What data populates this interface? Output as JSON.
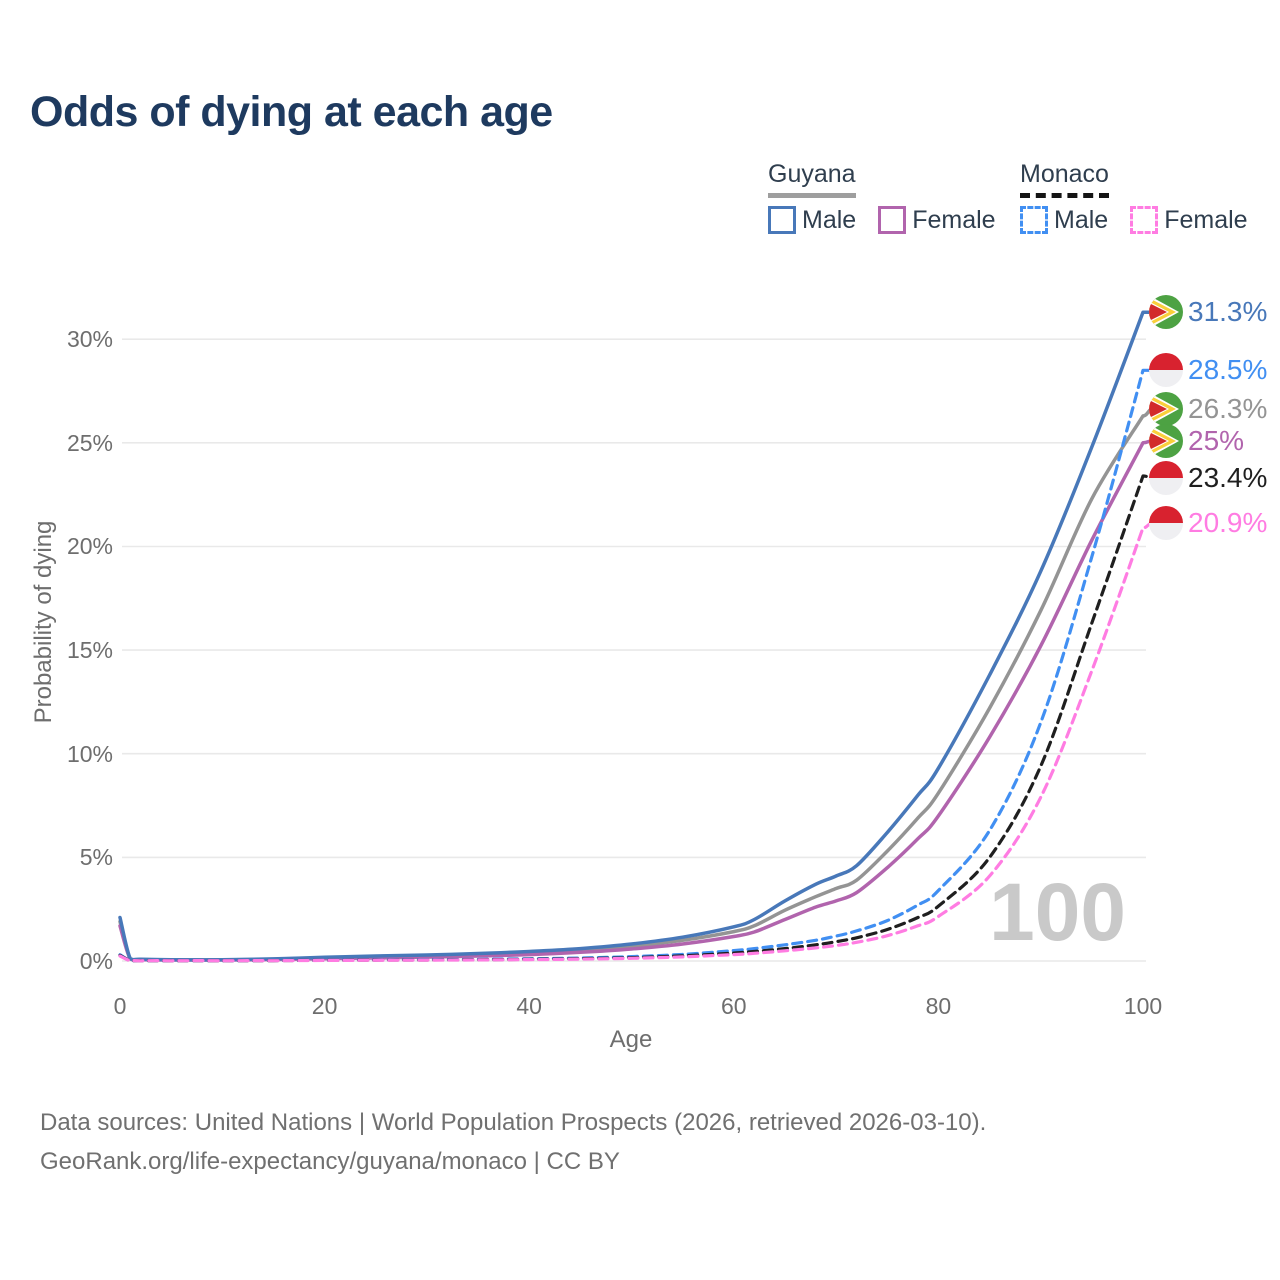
{
  "page": {
    "title": "Odds of dying at each age",
    "watermark": "100"
  },
  "legend": {
    "groups": [
      {
        "name": "Guyana",
        "line_style": "solid",
        "line_color": "#9e9e9e",
        "items": [
          {
            "label": "Male",
            "color": "#4878b9",
            "dashed": false
          },
          {
            "label": "Female",
            "color": "#b164ad",
            "dashed": false
          }
        ]
      },
      {
        "name": "Monaco",
        "line_style": "dashed",
        "line_color": "#141414",
        "items": [
          {
            "label": "Male",
            "color": "#418ff2",
            "dashed": true
          },
          {
            "label": "Female",
            "color": "#ff7ce2",
            "dashed": true
          }
        ]
      }
    ]
  },
  "axes": {
    "x": {
      "title": "Age",
      "ticks": [
        0,
        20,
        40,
        60,
        80,
        100
      ],
      "range": [
        0,
        100
      ]
    },
    "y": {
      "title": "Probability of dying",
      "tick_labels": [
        "0%",
        "5%",
        "10%",
        "15%",
        "20%",
        "25%",
        "30%"
      ],
      "tick_values": [
        0,
        5,
        10,
        15,
        20,
        25,
        30
      ],
      "range": [
        0,
        31.5
      ],
      "grid": true
    }
  },
  "footer": {
    "line1": "Data sources: United Nations | World Population Prospects (2026, retrieved 2026-03-10).",
    "line2": "GeoRank.org/life-expectancy/guyana/monaco | CC BY"
  },
  "colors": {
    "title": "#1e3a5f",
    "axis_text": "#6e6e6e",
    "grid": "#e9e9e9",
    "watermark": "#c9c9c9",
    "legend_text": "#2f3e4e",
    "guyana_flag_green": "#4da243",
    "guyana_flag_gold": "#f9cf3a",
    "guyana_flag_red": "#d22b2b",
    "monaco_flag_red": "#d8222f",
    "monaco_flag_white": "#efeff2"
  },
  "chart_data": {
    "type": "line",
    "title": "Odds of dying at each age",
    "xlabel": "Age",
    "ylabel": "Probability of dying",
    "x_ticks": [
      0,
      20,
      40,
      60,
      80,
      100
    ],
    "y_ticks_percent": [
      0,
      5,
      10,
      15,
      20,
      25,
      30
    ],
    "ylim_percent": [
      0,
      31.5
    ],
    "legend_position": "top-right",
    "grid": "horizontal-only",
    "ages": [
      0,
      1,
      2,
      5,
      10,
      15,
      20,
      25,
      30,
      35,
      40,
      45,
      50,
      55,
      60,
      62,
      65,
      68,
      70,
      72,
      75,
      78,
      80,
      85,
      90,
      95,
      100
    ],
    "series": [
      {
        "id": "guyana-both",
        "country": "Guyana",
        "sex": "Both",
        "color": "#949494",
        "dashed": false,
        "end_label": "26.3%",
        "end_value_percent": 26.3,
        "flag": "guyana",
        "label_dy": -7,
        "values_percent": [
          1.9,
          0.11,
          0.07,
          0.055,
          0.055,
          0.09,
          0.15,
          0.2,
          0.24,
          0.3,
          0.39,
          0.52,
          0.71,
          1.0,
          1.42,
          1.7,
          2.45,
          3.1,
          3.5,
          3.9,
          5.3,
          6.9,
          8.1,
          12.2,
          16.9,
          22.3,
          26.3
        ]
      },
      {
        "id": "guyana-female",
        "country": "Guyana",
        "sex": "Female",
        "color": "#b164ad",
        "dashed": false,
        "end_label": "25%",
        "end_value_percent": 25.0,
        "flag": "guyana",
        "label_dy": -2,
        "values_percent": [
          1.7,
          0.1,
          0.06,
          0.05,
          0.05,
          0.07,
          0.11,
          0.15,
          0.19,
          0.24,
          0.31,
          0.42,
          0.58,
          0.82,
          1.18,
          1.4,
          2.0,
          2.6,
          2.9,
          3.3,
          4.5,
          5.9,
          7.0,
          10.8,
          15.2,
          20.3,
          25.0
        ]
      },
      {
        "id": "guyana-male",
        "country": "Guyana",
        "sex": "Male",
        "color": "#4878b9",
        "dashed": false,
        "end_label": "31.3%",
        "end_value_percent": 31.3,
        "flag": "guyana",
        "label_dy": 0,
        "values_percent": [
          2.1,
          0.12,
          0.08,
          0.06,
          0.06,
          0.1,
          0.18,
          0.24,
          0.29,
          0.36,
          0.46,
          0.6,
          0.82,
          1.15,
          1.65,
          2.0,
          2.9,
          3.7,
          4.1,
          4.6,
          6.2,
          8.0,
          9.3,
          13.8,
          18.8,
          24.8,
          31.3
        ]
      },
      {
        "id": "monaco-male",
        "country": "Monaco",
        "sex": "Male",
        "color": "#418ff2",
        "dashed": true,
        "end_label": "28.5%",
        "end_value_percent": 28.5,
        "flag": "monaco",
        "label_dy": 0,
        "values_percent": [
          0.3,
          0.02,
          0.015,
          0.01,
          0.012,
          0.025,
          0.045,
          0.055,
          0.065,
          0.08,
          0.105,
          0.145,
          0.21,
          0.32,
          0.5,
          0.6,
          0.78,
          1.0,
          1.2,
          1.45,
          1.95,
          2.7,
          3.4,
          6.3,
          11.5,
          19.5,
          28.5
        ]
      },
      {
        "id": "monaco-both",
        "country": "Monaco",
        "sex": "Both",
        "color": "#1f1f1f",
        "dashed": true,
        "end_label": "23.4%",
        "end_value_percent": 23.4,
        "flag": "monaco",
        "label_dy": 2,
        "values_percent": [
          0.27,
          0.018,
          0.013,
          0.009,
          0.01,
          0.02,
          0.035,
          0.045,
          0.05,
          0.062,
          0.08,
          0.11,
          0.16,
          0.25,
          0.38,
          0.46,
          0.6,
          0.78,
          0.93,
          1.12,
          1.52,
          2.1,
          2.65,
          5.0,
          9.4,
          16.3,
          23.4
        ]
      },
      {
        "id": "monaco-female",
        "country": "Monaco",
        "sex": "Female",
        "color": "#ff7ce2",
        "dashed": true,
        "end_label": "20.9%",
        "end_value_percent": 20.9,
        "flag": "monaco",
        "label_dy": -5,
        "values_percent": [
          0.24,
          0.016,
          0.011,
          0.008,
          0.009,
          0.016,
          0.028,
          0.036,
          0.042,
          0.052,
          0.066,
          0.09,
          0.13,
          0.2,
          0.31,
          0.37,
          0.49,
          0.63,
          0.75,
          0.9,
          1.22,
          1.7,
          2.15,
          4.1,
          7.9,
          14.0,
          20.9
        ]
      }
    ]
  }
}
